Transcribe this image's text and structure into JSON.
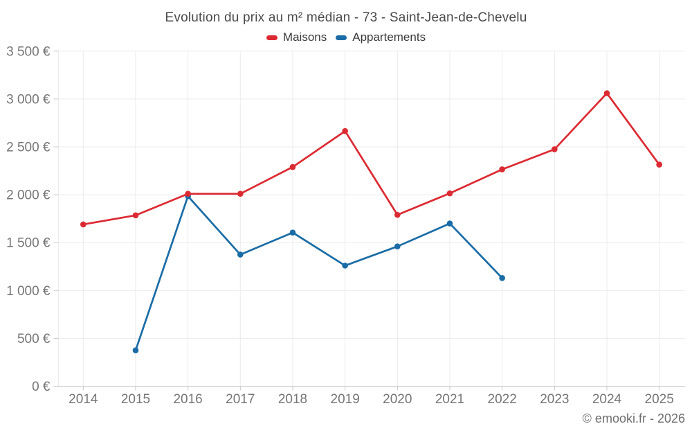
{
  "chart_data": {
    "type": "line",
    "title": "Evolution du prix au m² médian - 73 - Saint-Jean-de-Chevelu",
    "categories": [
      "2014",
      "2015",
      "2016",
      "2017",
      "2018",
      "2019",
      "2020",
      "2021",
      "2022",
      "2023",
      "2024",
      "2025"
    ],
    "series": [
      {
        "name": "Maisons",
        "color": "#dc2a32",
        "values": [
          1690,
          1785,
          2010,
          2010,
          2290,
          2665,
          1790,
          2015,
          2265,
          2475,
          3060,
          2315
        ]
      },
      {
        "name": "Appartements",
        "color": "#1a6ca6",
        "values": [
          null,
          375,
          1985,
          1375,
          1605,
          1260,
          1460,
          1700,
          1130,
          null,
          null,
          null
        ]
      }
    ],
    "ylim": [
      0,
      3500
    ],
    "y_ticks": [
      {
        "value": 0,
        "label": "0 €"
      },
      {
        "value": 500,
        "label": "500 €"
      },
      {
        "value": 1000,
        "label": "1 000 €"
      },
      {
        "value": 1500,
        "label": "1 500 €"
      },
      {
        "value": 2000,
        "label": "2 000 €"
      },
      {
        "value": 2500,
        "label": "2 500 €"
      },
      {
        "value": 3000,
        "label": "3 000 €"
      },
      {
        "value": 3500,
        "label": "3 500 €"
      }
    ],
    "grid": true,
    "legend_position": "top",
    "watermark": "© emooki.fr - 2026",
    "colors": {
      "grid": "#ebebeb",
      "axis": "#c9c9c9",
      "tick_text": "#757575"
    }
  }
}
